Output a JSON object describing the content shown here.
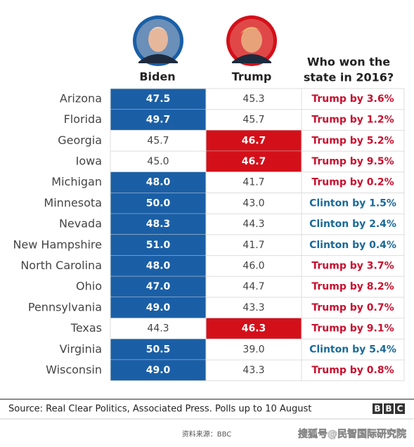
{
  "header": {
    "columns": [
      "Biden",
      "Trump"
    ],
    "won_2016_header": [
      "Who won the",
      "state in 2016?"
    ],
    "highlight_colors": {
      "biden": "#1a5fa6",
      "trump": "#d3101a"
    }
  },
  "table": {
    "rows": [
      {
        "state": "Arizona",
        "biden": "47.5",
        "trump": "45.3",
        "won_2016": {
          "text": "Trump by 3.6%",
          "color": "#c8102e"
        }
      },
      {
        "state": "Florida",
        "biden": "49.7",
        "trump": "45.7",
        "won_2016": {
          "text": "Trump by 1.2%",
          "color": "#c8102e"
        }
      },
      {
        "state": "Georgia",
        "biden": "45.7",
        "trump": "46.7",
        "won_2016": {
          "text": "Trump by 5.2%",
          "color": "#c8102e"
        }
      },
      {
        "state": "Iowa",
        "biden": "45.0",
        "trump": "46.7",
        "won_2016": {
          "text": "Trump by 9.5%",
          "color": "#c8102e"
        }
      },
      {
        "state": "Michigan",
        "biden": "48.0",
        "trump": "41.7",
        "won_2016": {
          "text": "Trump by 0.2%",
          "color": "#c8102e"
        }
      },
      {
        "state": "Minnesota",
        "biden": "50.0",
        "trump": "43.0",
        "won_2016": {
          "text": "Clinton by 1.5%",
          "color": "#1a6a9a"
        }
      },
      {
        "state": "Nevada",
        "biden": "48.3",
        "trump": "44.3",
        "won_2016": {
          "text": "Clinton by 2.4%",
          "color": "#1a6a9a"
        }
      },
      {
        "state": "New Hampshire",
        "biden": "51.0",
        "trump": "41.7",
        "won_2016": {
          "text": "Clinton by 0.4%",
          "color": "#1a6a9a"
        }
      },
      {
        "state": "North Carolina",
        "biden": "48.0",
        "trump": "46.0",
        "won_2016": {
          "text": "Trump by 3.7%",
          "color": "#c8102e"
        }
      },
      {
        "state": "Ohio",
        "biden": "47.0",
        "trump": "44.7",
        "won_2016": {
          "text": "Trump by 8.2%",
          "color": "#c8102e"
        }
      },
      {
        "state": "Pennsylvania",
        "biden": "49.0",
        "trump": "43.3",
        "won_2016": {
          "text": "Trump by 0.7%",
          "color": "#c8102e"
        }
      },
      {
        "state": "Texas",
        "biden": "44.3",
        "trump": "46.3",
        "won_2016": {
          "text": "Trump by 9.1%",
          "color": "#c8102e"
        }
      },
      {
        "state": "Virginia",
        "biden": "50.5",
        "trump": "39.0",
        "won_2016": {
          "text": "Clinton by 5.4%",
          "color": "#1a6a9a"
        }
      },
      {
        "state": "Wisconsin",
        "biden": "49.0",
        "trump": "43.3",
        "won_2016": {
          "text": "Trump by 0.8%",
          "color": "#c8102e"
        }
      }
    ]
  },
  "footer": {
    "source": "Source: Real Clear Politics, Associated Press. Polls up to 10 August",
    "logo": [
      "B",
      "B",
      "C"
    ]
  },
  "watermark": {
    "caption": "资料来源：BBC",
    "account": "搜狐号@民智国际研究院"
  }
}
